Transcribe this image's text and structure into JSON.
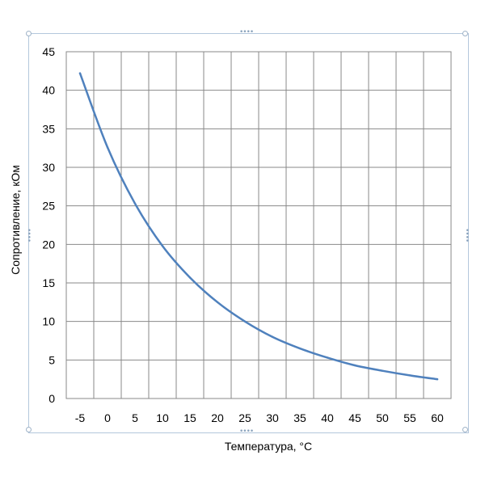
{
  "chart_data": {
    "type": "line",
    "title": "",
    "xlabel": "Температура,  °C",
    "ylabel": "Сопротивление, кОм",
    "xlim": [
      -7.5,
      62.5
    ],
    "ylim": [
      0,
      45
    ],
    "x_ticks": [
      "-5",
      "0",
      "5",
      "10",
      "15",
      "20",
      "25",
      "30",
      "35",
      "40",
      "45",
      "50",
      "55",
      "60"
    ],
    "y_ticks": [
      "0",
      "5",
      "10",
      "15",
      "20",
      "25",
      "30",
      "35",
      "40",
      "45"
    ],
    "grid": true,
    "legend": "none",
    "series": [
      {
        "color": "#4f81bd",
        "x": [
          -5,
          0,
          5,
          10,
          15,
          20,
          25,
          30,
          35,
          40,
          45,
          50,
          55,
          60
        ],
        "y": [
          42.2,
          32.6,
          25.3,
          19.8,
          15.7,
          12.5,
          10.0,
          8.0,
          6.5,
          5.3,
          4.3,
          3.6,
          3.0,
          2.5
        ]
      }
    ]
  }
}
